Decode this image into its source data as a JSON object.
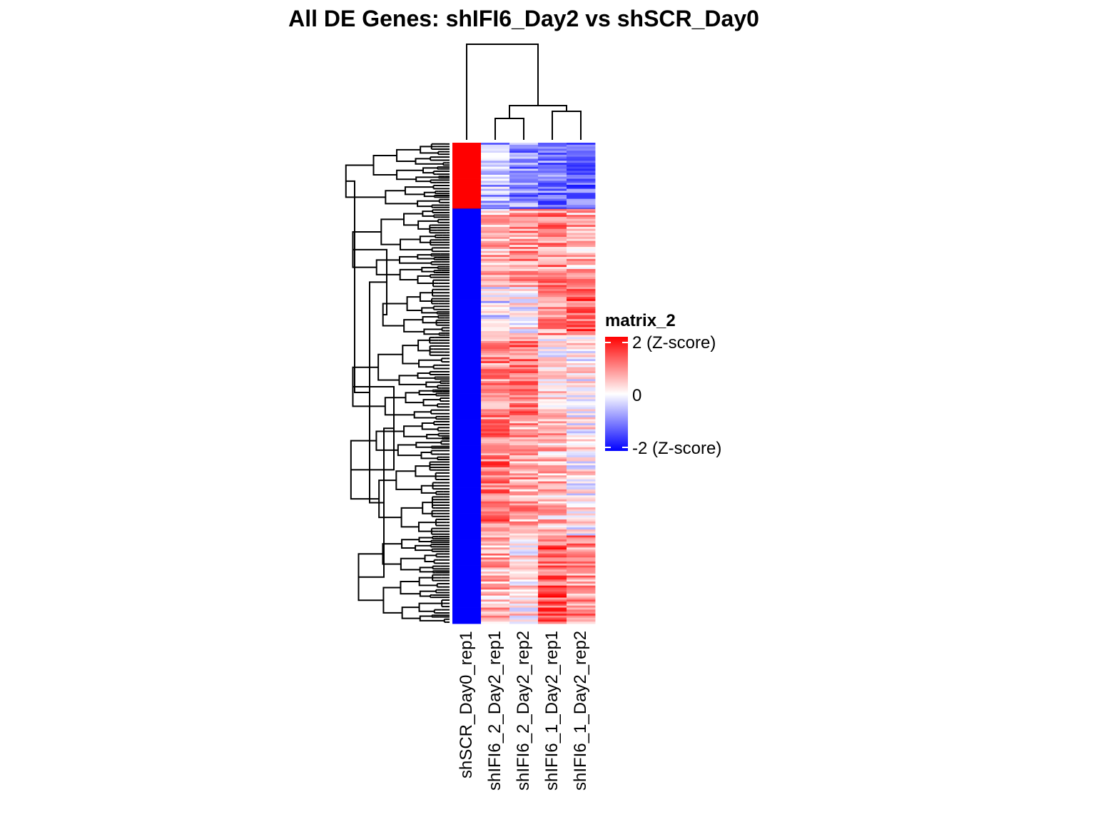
{
  "chart_data": {
    "type": "heatmap",
    "title": "All DE Genes: shIFI6_Day2  vs  shSCR_Day0",
    "columns": [
      "shSCR_Day0_rep1",
      "shIFI6_2_Day2_rep1",
      "shIFI6_2_Day2_rep2",
      "shIFI6_1_Day2_rep1",
      "shIFI6_1_Day2_rep2"
    ],
    "legend": {
      "title": "matrix_2",
      "labels": [
        "2 (Z-score)",
        "0",
        "-2 (Z-score)"
      ],
      "range": [
        -2,
        2
      ],
      "colors": {
        "high": "#ff0000",
        "mid": "#ffffff",
        "low": "#0000ff"
      }
    },
    "row_clusters": [
      {
        "fraction": 0.137,
        "mean_z": [
          2.0,
          -0.6,
          -0.9,
          -1.0,
          -1.2
        ]
      },
      {
        "fraction": 0.165,
        "mean_z": [
          -2.0,
          0.5,
          0.8,
          0.9,
          0.6
        ]
      },
      {
        "fraction": 0.1,
        "mean_z": [
          -2.0,
          -0.2,
          0.1,
          0.8,
          1.3
        ]
      },
      {
        "fraction": 0.175,
        "mean_z": [
          -2.0,
          0.9,
          1.1,
          0.2,
          0.1
        ]
      },
      {
        "fraction": 0.24,
        "mean_z": [
          -2.0,
          1.1,
          0.7,
          0.5,
          0.1
        ]
      },
      {
        "fraction": 0.183,
        "mean_z": [
          -2.0,
          0.6,
          0.2,
          1.3,
          0.9
        ]
      }
    ]
  }
}
